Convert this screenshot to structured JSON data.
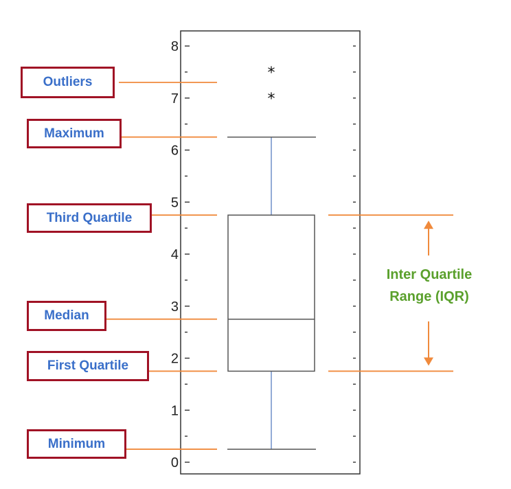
{
  "colors": {
    "leader_line": "#f08a3c",
    "callout_border": "#a01225",
    "callout_text": "#3a6fc9",
    "iqr_text": "#5aa02c",
    "whisker": "#6f8fc8",
    "box_stroke": "#555555",
    "axis": "#333333"
  },
  "callouts": {
    "outliers": "Outliers",
    "maximum": "Maximum",
    "third_quartile": "Third Quartile",
    "median": "Median",
    "first_quartile": "First Quartile",
    "minimum": "Minimum"
  },
  "iqr": {
    "line1": "Inter Quartile",
    "line2": "Range (IQR)"
  },
  "outlier_symbol": "*",
  "chart_data": {
    "type": "box",
    "ylim": [
      0,
      8
    ],
    "y_ticks": [
      "0",
      "1",
      "2",
      "3",
      "4",
      "5",
      "6",
      "7",
      "8"
    ],
    "minimum": 0.25,
    "first_quartile": 1.75,
    "median": 2.75,
    "third_quartile": 4.75,
    "maximum": 6.25,
    "outliers": [
      7.05,
      7.55
    ]
  }
}
